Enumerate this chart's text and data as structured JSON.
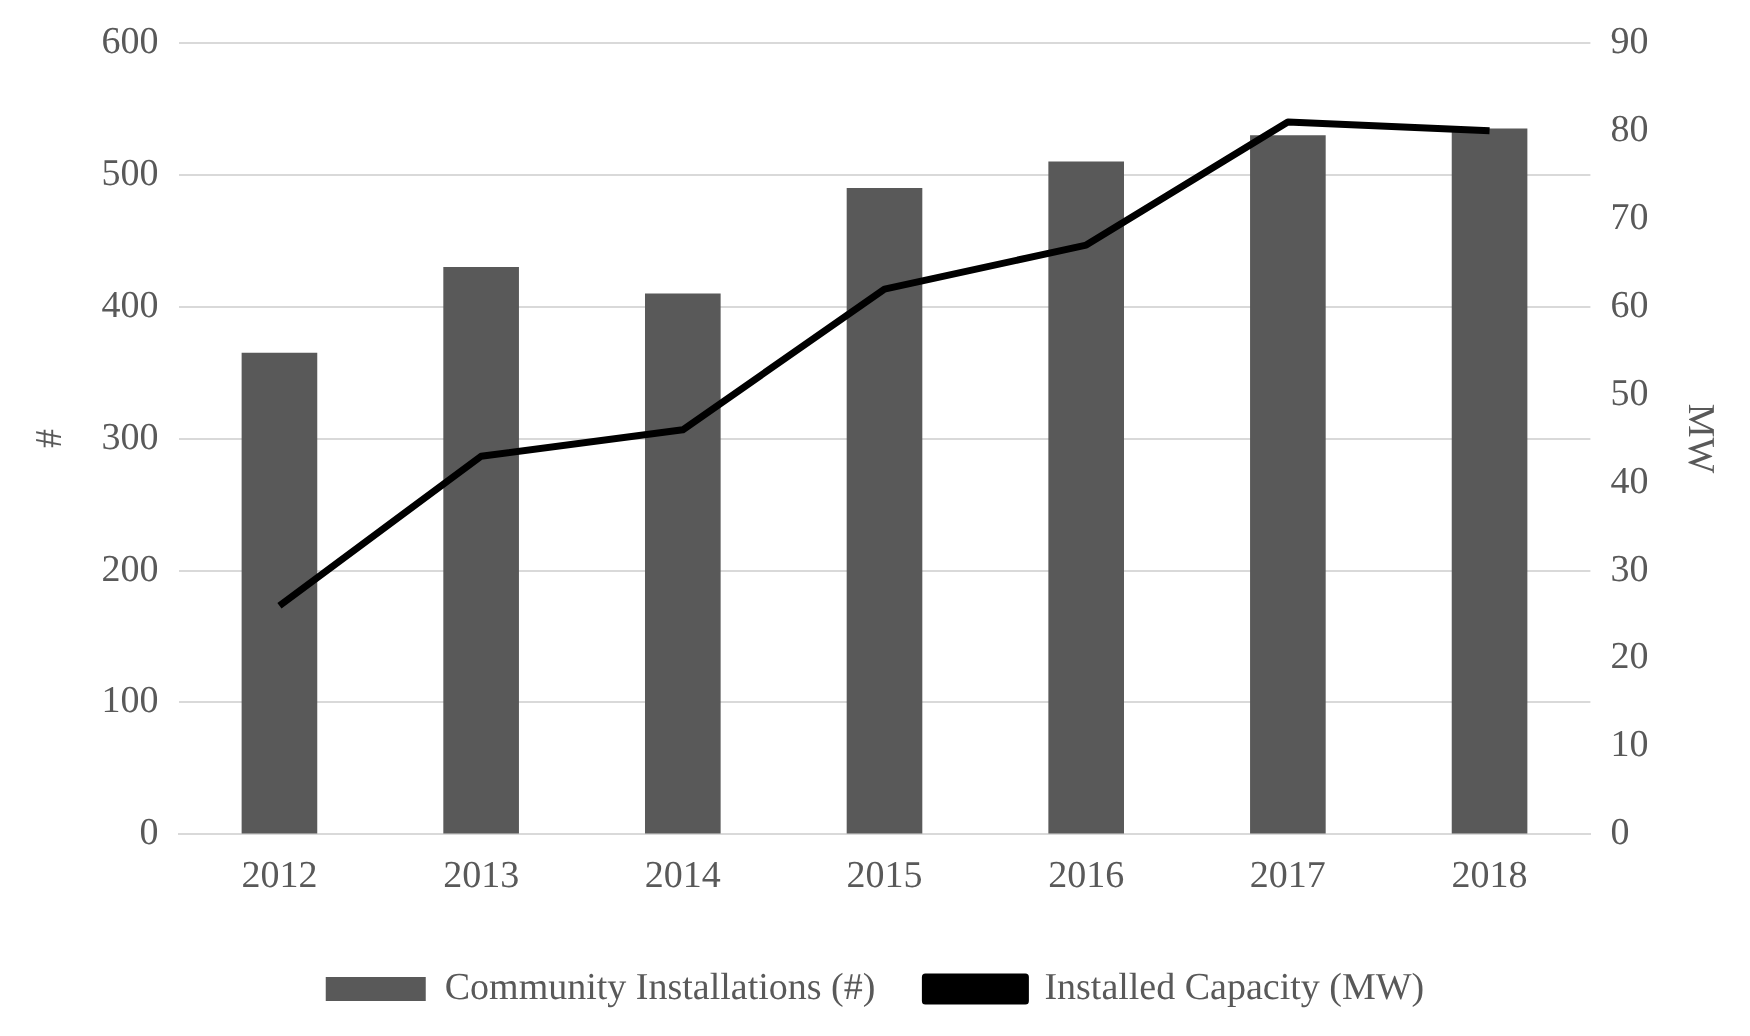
{
  "chart_data": {
    "type": "bar",
    "categories": [
      "2012",
      "2013",
      "2014",
      "2015",
      "2016",
      "2017",
      "2018"
    ],
    "series": [
      {
        "name": "Community Installations (#)",
        "color": "#595959",
        "values": [
          365,
          430,
          410,
          490,
          510,
          530,
          535
        ]
      },
      {
        "name": "Installed Capacity (MW)",
        "type": "line",
        "axis": "y2",
        "color": "#000000",
        "values": [
          26,
          43,
          46,
          62,
          67,
          81,
          80
        ]
      }
    ],
    "ylabel": "#",
    "y2label": "MW",
    "ylim": [
      0,
      600
    ],
    "yticks": [
      0,
      100,
      200,
      300,
      400,
      500,
      600
    ],
    "y2lim": [
      0,
      90
    ],
    "y2ticks": [
      0,
      10,
      20,
      30,
      40,
      50,
      60,
      70,
      80,
      90
    ],
    "grid": "y",
    "legend": "bottom",
    "marker": "none"
  }
}
